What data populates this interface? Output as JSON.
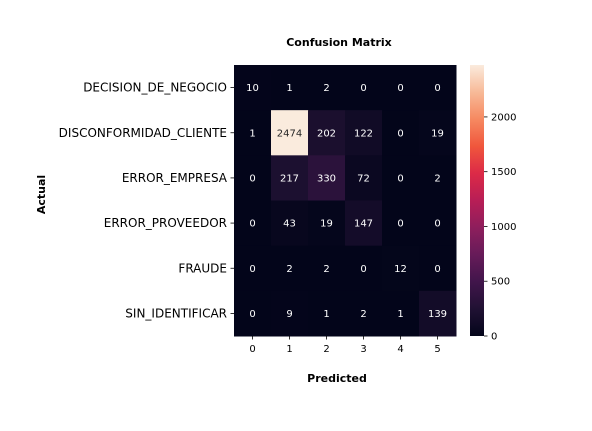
{
  "chart_data": {
    "type": "heatmap",
    "title": "Confusion Matrix",
    "xlabel": "Predicted",
    "ylabel": "Actual",
    "row_labels": [
      "DECISION_DE_NEGOCIO",
      "DISCONFORMIDAD_CLIENTE",
      "ERROR_EMPRESA",
      "ERROR_PROVEEDOR",
      "FRAUDE",
      "SIN_IDENTIFICAR"
    ],
    "col_labels": [
      "0",
      "1",
      "2",
      "3",
      "4",
      "5"
    ],
    "values": [
      [
        10,
        1,
        2,
        0,
        0,
        0
      ],
      [
        1,
        2474,
        202,
        122,
        0,
        19
      ],
      [
        0,
        217,
        330,
        72,
        0,
        2
      ],
      [
        0,
        43,
        19,
        147,
        0,
        0
      ],
      [
        0,
        2,
        2,
        0,
        12,
        0
      ],
      [
        0,
        9,
        1,
        2,
        1,
        139
      ]
    ],
    "colormap": "rocket",
    "vmin": 0,
    "vmax": 2474,
    "colorbar_ticks": [
      0,
      500,
      1000,
      1500,
      2000
    ]
  }
}
